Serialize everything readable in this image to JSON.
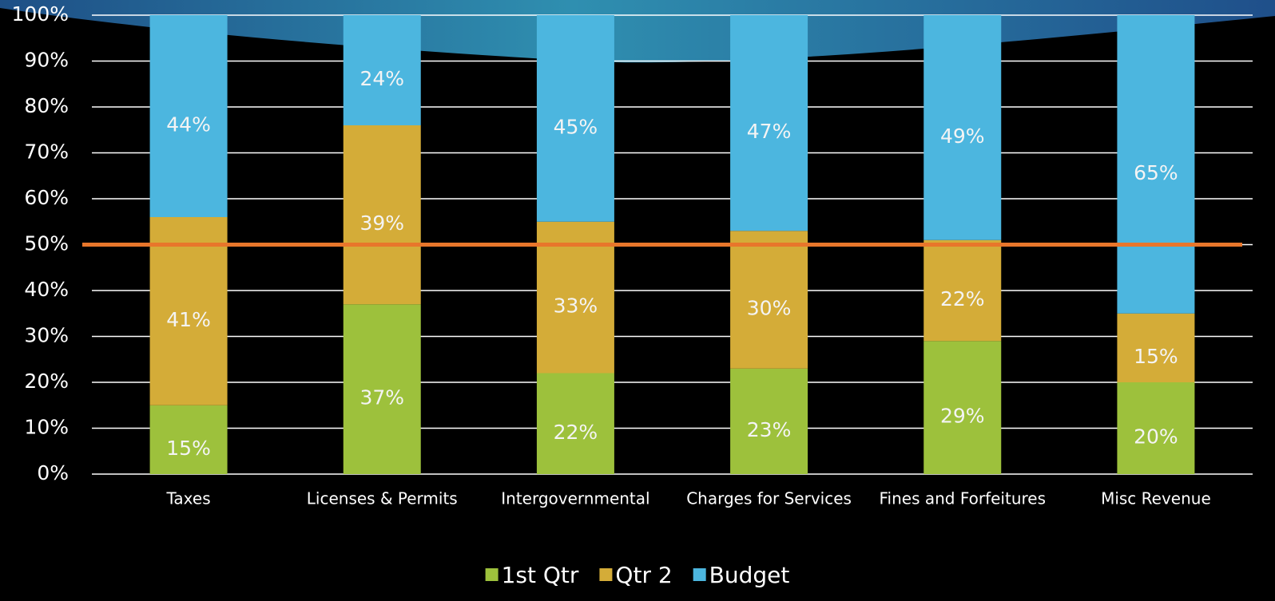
{
  "chart_data": {
    "type": "stacked_bar",
    "categories": [
      "Taxes",
      "Licenses & Permits",
      "Intergovernmental",
      "Charges for Services",
      "Fines and Forfeitures",
      "Misc Revenue"
    ],
    "series": [
      {
        "name": "1st Qtr",
        "color": "#9dc13c",
        "values": [
          15,
          37,
          22,
          23,
          29,
          20
        ],
        "value_labels": [
          "15%",
          "37%",
          "22%",
          "23%",
          "29%",
          "20%"
        ]
      },
      {
        "name": "Qtr 2",
        "color": "#d4ac38",
        "values": [
          41,
          39,
          33,
          30,
          22,
          15
        ],
        "value_labels": [
          "41%",
          "39%",
          "33%",
          "30%",
          "22%",
          "15%"
        ]
      },
      {
        "name": "Budget",
        "color": "#4cb6df",
        "values": [
          44,
          24,
          45,
          47,
          49,
          65
        ],
        "value_labels": [
          "44%",
          "24%",
          "45%",
          "47%",
          "49%",
          "65%"
        ]
      }
    ],
    "ylim": [
      0,
      100
    ],
    "yticks": [
      {
        "value": 0,
        "label": "0%"
      },
      {
        "value": 10,
        "label": "10%"
      },
      {
        "value": 20,
        "label": "20%"
      },
      {
        "value": 30,
        "label": "30%"
      },
      {
        "value": 40,
        "label": "40%"
      },
      {
        "value": 50,
        "label": "50%"
      },
      {
        "value": 60,
        "label": "60%"
      },
      {
        "value": 70,
        "label": "70%"
      },
      {
        "value": 80,
        "label": "80%"
      },
      {
        "value": 90,
        "label": "90%"
      },
      {
        "value": 100,
        "label": "100%"
      }
    ],
    "grid": true,
    "reference_line": {
      "value": 50,
      "color": "#e8762b"
    },
    "legend": "bottom"
  }
}
